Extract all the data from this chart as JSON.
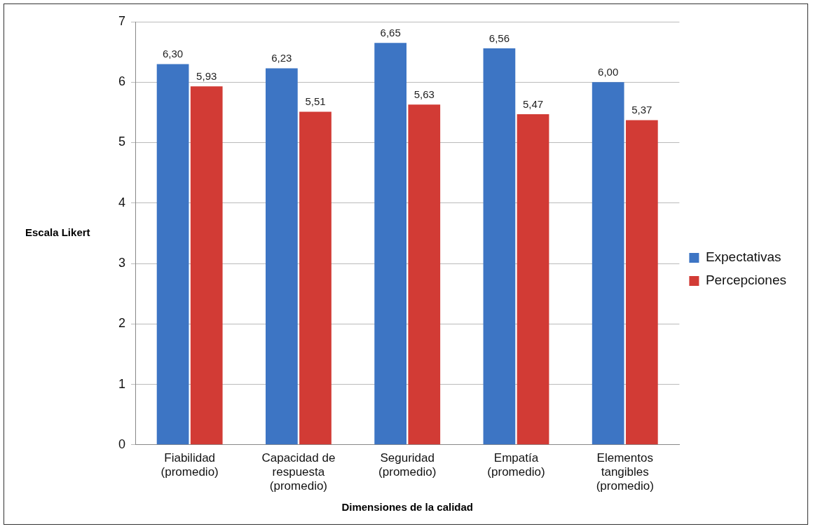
{
  "chart_data": {
    "type": "bar",
    "xlabel": "Dimensiones de la calidad",
    "ylabel": "Escala Likert",
    "categories": [
      "Fiabilidad\n(promedio)",
      "Capacidad de\nrespuesta\n(promedio)",
      "Seguridad\n(promedio)",
      "Empatía\n(promedio)",
      "Elementos\ntangibles\n(promedio)"
    ],
    "series": [
      {
        "name": "Expectativas",
        "color": "#3d75c4",
        "values": [
          6.3,
          6.23,
          6.65,
          6.56,
          6.0
        ],
        "value_labels": [
          "6,30",
          "6,23",
          "6,65",
          "6,56",
          "6,00"
        ]
      },
      {
        "name": "Percepciones",
        "color": "#d23b35",
        "values": [
          5.93,
          5.51,
          5.63,
          5.47,
          5.37
        ],
        "value_labels": [
          "5,93",
          "5,51",
          "5,63",
          "5,47",
          "5,37"
        ]
      }
    ],
    "ylim": [
      0,
      7
    ],
    "yticks": [
      0,
      1,
      2,
      3,
      4,
      5,
      6,
      7
    ],
    "grid": "y",
    "legend": "right"
  }
}
